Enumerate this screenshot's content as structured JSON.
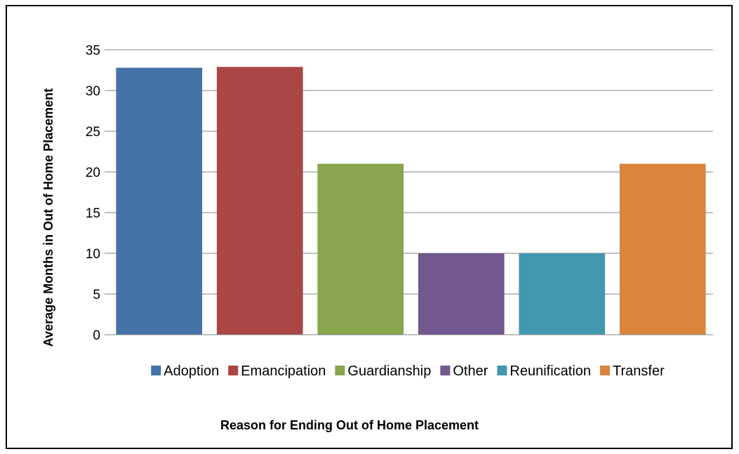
{
  "chart_data": {
    "type": "bar",
    "categories": [
      "Adoption",
      "Emancipation",
      "Guardianship",
      "Other",
      "Reunification",
      "Transfer"
    ],
    "values": [
      32.8,
      32.9,
      21,
      10,
      10,
      21
    ],
    "colors": [
      "#4572A7",
      "#AA4643",
      "#89A54E",
      "#71588F",
      "#4198AF",
      "#DB843D"
    ],
    "title": "",
    "xlabel": "Reason for Ending Out of Home Placement",
    "ylabel": "Average Months in Out of Home Placement",
    "ylim": [
      0,
      35
    ],
    "yticks": [
      0,
      5,
      10,
      15,
      20,
      25,
      30,
      35
    ],
    "grid": true,
    "legend": "bottom"
  }
}
